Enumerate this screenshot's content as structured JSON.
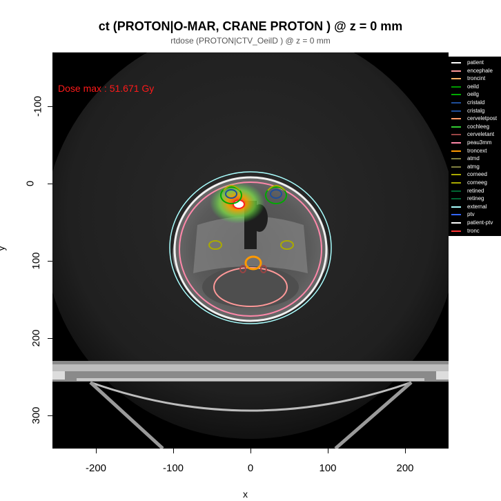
{
  "title": "ct (PROTON|O-MAR, CRANE PROTON ) @ z = 0 mm",
  "subtitle": "rtdose (PROTON|CTV_OeilD ) @ z = 0 mm",
  "xlabel": "x",
  "ylabel": "y",
  "dose_max_text": "Dose max : 51.671 Gy",
  "x_ticks": [
    "-200",
    "-100",
    "0",
    "100",
    "200"
  ],
  "y_ticks": [
    "-100",
    "0",
    "100",
    "200",
    "300"
  ],
  "legend": [
    {
      "label": "patient",
      "color": "#ffffff"
    },
    {
      "label": "encephale",
      "color": "#ff9999"
    },
    {
      "label": "troncint",
      "color": "#ffb366"
    },
    {
      "label": "oeild",
      "color": "#009900"
    },
    {
      "label": "oeilg",
      "color": "#00aa00"
    },
    {
      "label": "cristald",
      "color": "#1f4e99"
    },
    {
      "label": "cristalg",
      "color": "#1f4e99"
    },
    {
      "label": "cerveletpost",
      "color": "#ff9966"
    },
    {
      "label": "cochleeg",
      "color": "#33cc33"
    },
    {
      "label": "cerveletant",
      "color": "#994444"
    },
    {
      "label": "peau3mm",
      "color": "#ff88aa"
    },
    {
      "label": "troncext",
      "color": "#ff9900"
    },
    {
      "label": "atmd",
      "color": "#808040"
    },
    {
      "label": "atmg",
      "color": "#808040"
    },
    {
      "label": "corneed",
      "color": "#aaaa00"
    },
    {
      "label": "corneeg",
      "color": "#aaaa00"
    },
    {
      "label": "retined",
      "color": "#006633"
    },
    {
      "label": "retineg",
      "color": "#006633"
    },
    {
      "label": "external",
      "color": "#aaffff"
    },
    {
      "label": "ptv",
      "color": "#3366ff"
    },
    {
      "label": "patient-ptv",
      "color": "#ffffff"
    },
    {
      "label": "tronc",
      "color": "#ff3333"
    }
  ]
}
